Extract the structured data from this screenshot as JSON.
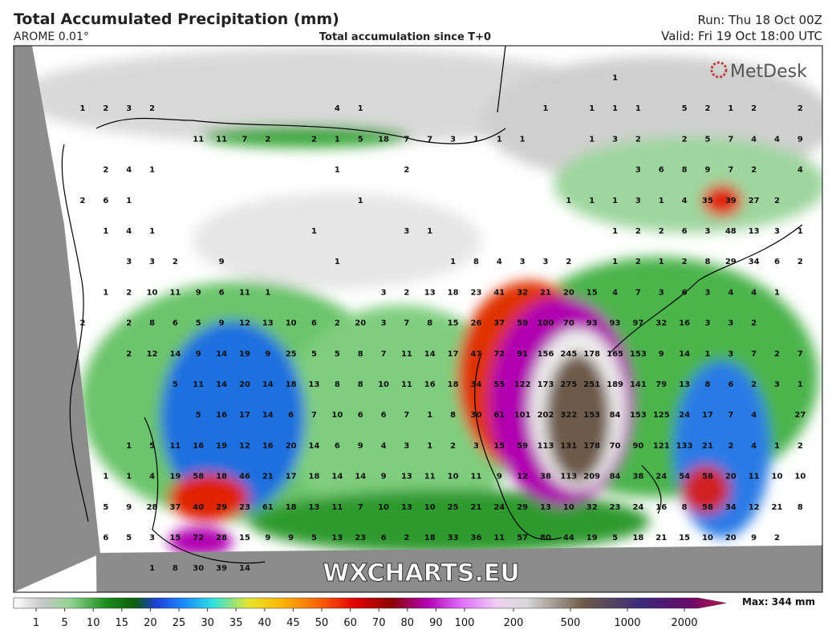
{
  "header": {
    "title": "Total Accumulated Precipitation (mm)",
    "model": "AROME 0.01°",
    "subtitle": "Total accumulation since T+0",
    "run": "Run: Thu 18 Oct 00Z",
    "valid": "Valid: Fri 19 Oct 18:00 UTC"
  },
  "map": {
    "brand": "MetDesk",
    "watermark": "WXCHARTS.EU",
    "grid": [
      [
        null,
        null,
        null,
        null,
        null,
        null,
        null,
        null,
        null,
        null,
        null,
        null,
        null,
        null,
        null,
        null,
        null,
        null,
        null,
        null,
        null,
        null,
        null,
        1,
        null,
        null,
        null,
        null,
        null,
        null,
        null,
        null
      ],
      [
        1,
        2,
        3,
        2,
        null,
        null,
        null,
        null,
        null,
        null,
        null,
        4,
        1,
        null,
        null,
        null,
        null,
        null,
        null,
        null,
        1,
        null,
        1,
        1,
        1,
        null,
        5,
        2,
        1,
        2,
        null,
        2
      ],
      [
        null,
        null,
        null,
        null,
        null,
        11,
        11,
        7,
        2,
        null,
        2,
        1,
        5,
        18,
        7,
        7,
        3,
        1,
        1,
        1,
        null,
        null,
        1,
        3,
        2,
        null,
        2,
        5,
        7,
        4,
        4,
        9
      ],
      [
        null,
        2,
        4,
        1,
        null,
        null,
        null,
        null,
        null,
        null,
        null,
        1,
        null,
        null,
        2,
        null,
        null,
        null,
        null,
        null,
        null,
        null,
        null,
        null,
        3,
        6,
        8,
        9,
        7,
        2,
        null,
        4
      ],
      [
        2,
        6,
        1,
        null,
        null,
        null,
        null,
        null,
        null,
        null,
        null,
        null,
        1,
        null,
        null,
        null,
        null,
        null,
        null,
        null,
        null,
        1,
        1,
        1,
        3,
        1,
        4,
        35,
        39,
        27,
        2,
        null
      ],
      [
        null,
        1,
        4,
        1,
        null,
        null,
        null,
        null,
        null,
        null,
        1,
        null,
        null,
        null,
        3,
        1,
        null,
        null,
        null,
        null,
        null,
        null,
        null,
        1,
        2,
        2,
        6,
        3,
        48,
        13,
        3,
        1
      ],
      [
        null,
        null,
        3,
        3,
        2,
        null,
        9,
        null,
        null,
        null,
        null,
        1,
        null,
        null,
        null,
        null,
        1,
        8,
        4,
        3,
        3,
        2,
        null,
        1,
        2,
        1,
        2,
        8,
        29,
        34,
        6,
        2
      ],
      [
        null,
        1,
        2,
        10,
        11,
        9,
        6,
        11,
        1,
        null,
        null,
        null,
        null,
        3,
        2,
        13,
        18,
        23,
        41,
        32,
        21,
        20,
        15,
        4,
        7,
        3,
        6,
        3,
        4,
        4,
        1,
        null
      ],
      [
        2,
        null,
        2,
        8,
        6,
        5,
        9,
        12,
        13,
        10,
        6,
        2,
        20,
        3,
        7,
        8,
        15,
        26,
        37,
        59,
        100,
        70,
        93,
        93,
        97,
        32,
        16,
        3,
        3,
        2,
        null,
        null
      ],
      [
        null,
        null,
        2,
        12,
        14,
        9,
        14,
        19,
        9,
        25,
        5,
        5,
        8,
        7,
        11,
        14,
        17,
        47,
        72,
        91,
        156,
        245,
        178,
        165,
        153,
        9,
        14,
        1,
        3,
        7,
        2,
        7
      ],
      [
        null,
        null,
        null,
        null,
        5,
        11,
        14,
        20,
        14,
        18,
        13,
        8,
        8,
        10,
        11,
        16,
        18,
        34,
        55,
        122,
        173,
        275,
        251,
        189,
        141,
        79,
        13,
        8,
        6,
        2,
        3,
        1
      ],
      [
        null,
        null,
        null,
        null,
        null,
        5,
        16,
        17,
        14,
        6,
        7,
        10,
        6,
        6,
        7,
        1,
        8,
        30,
        61,
        101,
        202,
        322,
        153,
        84,
        153,
        125,
        24,
        17,
        7,
        4,
        null,
        27
      ],
      [
        null,
        null,
        1,
        5,
        11,
        16,
        19,
        12,
        16,
        20,
        14,
        6,
        9,
        4,
        3,
        1,
        2,
        3,
        15,
        59,
        113,
        131,
        178,
        70,
        90,
        121,
        133,
        21,
        2,
        4,
        1,
        2
      ],
      [
        null,
        1,
        1,
        4,
        19,
        58,
        18,
        46,
        21,
        17,
        18,
        14,
        14,
        9,
        13,
        11,
        10,
        11,
        9,
        12,
        38,
        113,
        209,
        84,
        38,
        24,
        54,
        58,
        20,
        11,
        10,
        10
      ],
      [
        null,
        5,
        9,
        28,
        37,
        40,
        29,
        23,
        61,
        18,
        13,
        11,
        7,
        10,
        13,
        10,
        25,
        21,
        24,
        29,
        13,
        10,
        32,
        23,
        24,
        16,
        8,
        58,
        34,
        12,
        21,
        8
      ],
      [
        null,
        6,
        5,
        3,
        15,
        72,
        28,
        15,
        9,
        9,
        5,
        13,
        23,
        6,
        2,
        18,
        33,
        36,
        11,
        57,
        80,
        44,
        19,
        5,
        18,
        21,
        15,
        10,
        20,
        9,
        2,
        null
      ],
      [
        null,
        null,
        null,
        1,
        8,
        30,
        39,
        14,
        null,
        null,
        null,
        null,
        null,
        null,
        null,
        null,
        null,
        null,
        null,
        null,
        null,
        null,
        null,
        null,
        null,
        null,
        null,
        null,
        null,
        null,
        null,
        null
      ]
    ]
  },
  "colorbar": {
    "labels": [
      1,
      5,
      10,
      15,
      20,
      25,
      30,
      35,
      40,
      45,
      50,
      60,
      70,
      80,
      90,
      100,
      200,
      500,
      1000,
      2000
    ],
    "max": "Max: 344 mm"
  }
}
